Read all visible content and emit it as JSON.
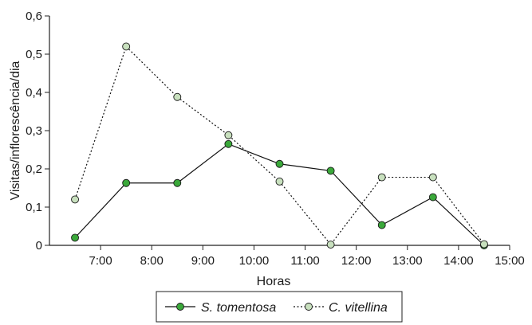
{
  "chart_data": {
    "type": "line",
    "title": "",
    "xlabel": "Horas",
    "ylabel": "Visitas/inflorescência/dia",
    "x_ticks": [
      "7:00",
      "8:00",
      "9:00",
      "10:00",
      "11:00",
      "12:00",
      "13:00",
      "14:00",
      "15:00"
    ],
    "x_tick_values": [
      7,
      8,
      9,
      10,
      11,
      12,
      13,
      14,
      15
    ],
    "y_ticks": [
      "0",
      "0,1",
      "0,2",
      "0,3",
      "0,4",
      "0,5",
      "0,6"
    ],
    "y_tick_values": [
      0,
      0.1,
      0.2,
      0.3,
      0.4,
      0.5,
      0.6
    ],
    "xlim": [
      6,
      15
    ],
    "ylim": [
      0,
      0.6
    ],
    "grid": false,
    "legend_position": "bottom",
    "x": [
      6.5,
      7.5,
      8.5,
      9.5,
      10.5,
      11.5,
      12.5,
      13.5,
      14.5
    ],
    "series": [
      {
        "name": "S. tomentosa",
        "values": [
          0.02,
          0.163,
          0.163,
          0.265,
          0.213,
          0.195,
          0.053,
          0.126,
          0.0
        ],
        "line_style": "solid",
        "line_color": "#111111",
        "marker_fill": "#3aa83a"
      },
      {
        "name": "C. vitellina",
        "values": [
          0.12,
          0.52,
          0.388,
          0.288,
          0.167,
          0.002,
          0.178,
          0.178,
          0.003
        ],
        "line_style": "dotted",
        "line_color": "#111111",
        "marker_fill": "#c8e0be"
      }
    ]
  }
}
